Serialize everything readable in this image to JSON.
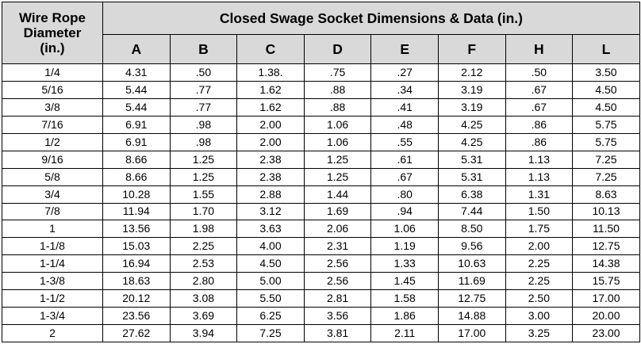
{
  "header": {
    "corner": [
      "Wire Rope",
      "Diameter",
      "(in.)"
    ],
    "title": "Closed Swage Socket Dimensions & Data (in.)",
    "columns": [
      "A",
      "B",
      "C",
      "D",
      "E",
      "F",
      "H",
      "L"
    ]
  },
  "rows": [
    [
      "1/4",
      "4.31",
      ".50",
      "1.38.",
      ".75",
      ".27",
      "2.12",
      ".50",
      "3.50"
    ],
    [
      "5/16",
      "5.44",
      ".77",
      "1.62",
      ".88",
      ".34",
      "3.19",
      ".67",
      "4.50"
    ],
    [
      "3/8",
      "5.44",
      ".77",
      "1.62",
      ".88",
      ".41",
      "3.19",
      ".67",
      "4.50"
    ],
    [
      "7/16",
      "6.91",
      ".98",
      "2.00",
      "1.06",
      ".48",
      "4.25",
      ".86",
      "5.75"
    ],
    [
      "1/2",
      "6.91",
      ".98",
      "2.00",
      "1.06",
      ".55",
      "4.25",
      ".86",
      "5.75"
    ],
    [
      "9/16",
      "8.66",
      "1.25",
      "2.38",
      "1.25",
      ".61",
      "5.31",
      "1.13",
      "7.25"
    ],
    [
      "5/8",
      "8.66",
      "1.25",
      "2.38",
      "1.25",
      ".67",
      "5.31",
      "1.13",
      "7.25"
    ],
    [
      "3/4",
      "10.28",
      "1.55",
      "2.88",
      "1.44",
      ".80",
      "6.38",
      "1.31",
      "8.63"
    ],
    [
      "7/8",
      "11.94",
      "1.70",
      "3.12",
      "1.69",
      ".94",
      "7.44",
      "1.50",
      "10.13"
    ],
    [
      "1",
      "13.56",
      "1.98",
      "3.63",
      "2.06",
      "1.06",
      "8.50",
      "1.75",
      "11.50"
    ],
    [
      "1-1/8",
      "15.03",
      "2.25",
      "4.00",
      "2.31",
      "1.19",
      "9.56",
      "2.00",
      "12.75"
    ],
    [
      "1-1/4",
      "16.94",
      "2.53",
      "4.50",
      "2.56",
      "1.33",
      "10.63",
      "2.25",
      "14.38"
    ],
    [
      "1-3/8",
      "18.63",
      "2.80",
      "5.00",
      "2.56",
      "1.45",
      "11.69",
      "2.25",
      "15.75"
    ],
    [
      "1-1/2",
      "20.12",
      "3.08",
      "5.50",
      "2.81",
      "1.58",
      "12.75",
      "2.50",
      "17.00"
    ],
    [
      "1-3/4",
      "23.56",
      "3.69",
      "6.25",
      "3.56",
      "1.86",
      "14.88",
      "3.00",
      "20.00"
    ],
    [
      "2",
      "27.62",
      "3.94",
      "7.25",
      "3.81",
      "2.11",
      "17.00",
      "3.25",
      "23.00"
    ]
  ]
}
